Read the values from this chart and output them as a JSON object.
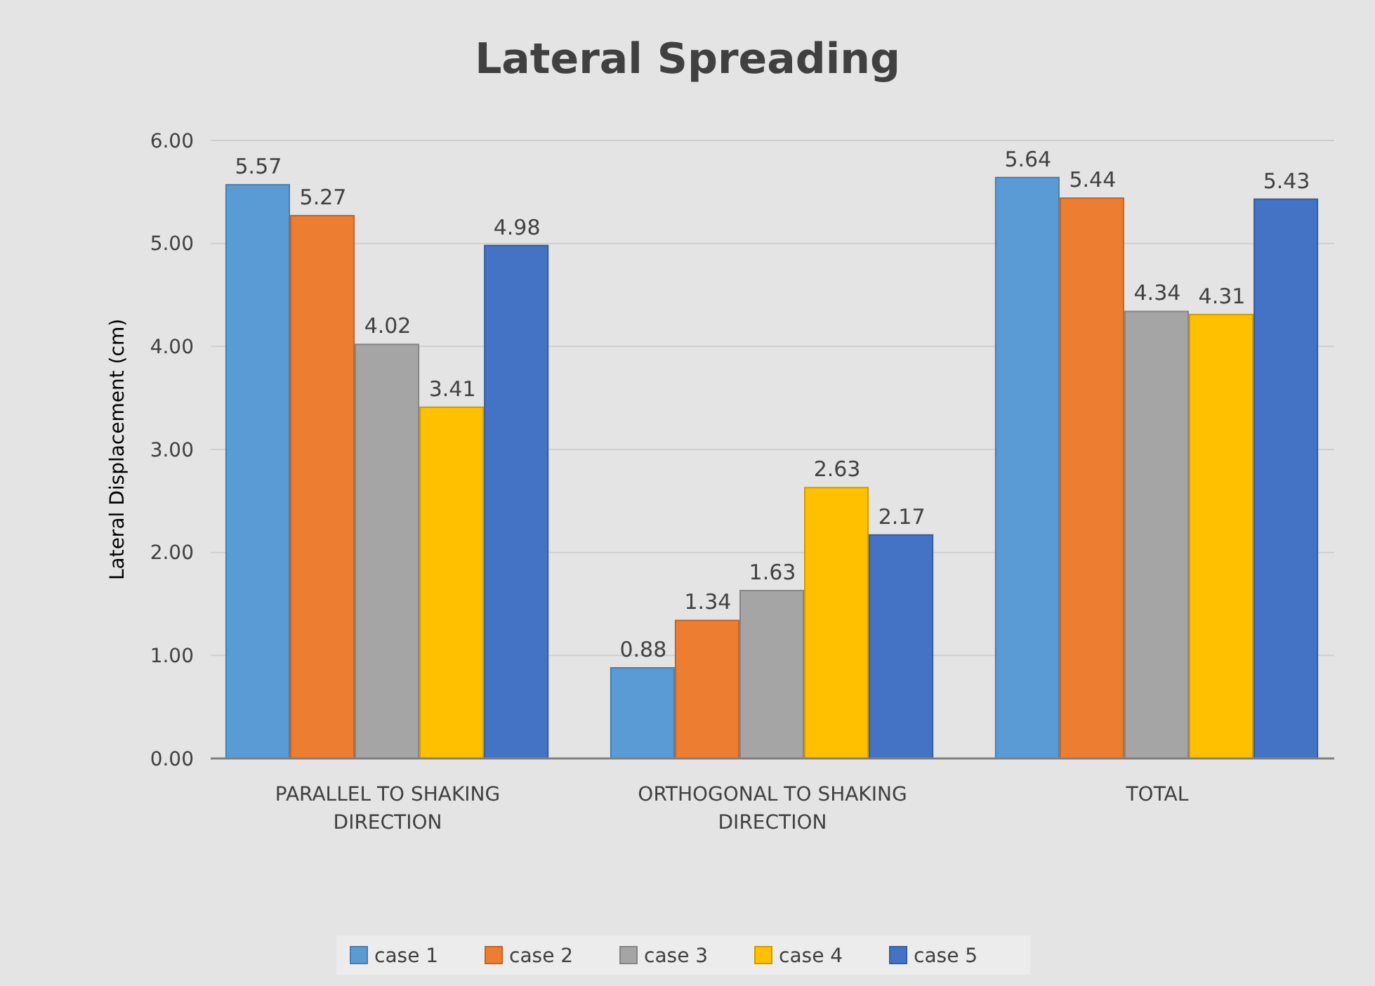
{
  "chart_data": {
    "type": "bar",
    "title": "Lateral Spreading",
    "ylabel": "Lateral Displacement (cm)",
    "categories": [
      "PARALLEL TO SHAKING DIRECTION",
      "ORTHOGONAL TO SHAKING DIRECTION",
      "TOTAL"
    ],
    "series": [
      {
        "name": "case 1",
        "color": "#5b9bd5",
        "values": [
          5.57,
          0.88,
          5.64
        ]
      },
      {
        "name": "case 2",
        "color": "#ed7d31",
        "values": [
          5.27,
          1.34,
          5.44
        ]
      },
      {
        "name": "case 3",
        "color": "#a5a5a5",
        "values": [
          4.02,
          1.63,
          4.34
        ]
      },
      {
        "name": "case 4",
        "color": "#ffc000",
        "values": [
          3.41,
          2.63,
          4.31
        ]
      },
      {
        "name": "case 5",
        "color": "#4472c4",
        "values": [
          4.98,
          2.17,
          5.43
        ]
      }
    ],
    "ylim": [
      0,
      6
    ],
    "yticks": [
      {
        "value": 0,
        "label": "0.00"
      },
      {
        "value": 1,
        "label": "1.00"
      },
      {
        "value": 2,
        "label": "2.00"
      },
      {
        "value": 3,
        "label": "3.00"
      },
      {
        "value": 4,
        "label": "4.00"
      },
      {
        "value": 5,
        "label": "5.00"
      },
      {
        "value": 6,
        "label": "6.00"
      }
    ],
    "grid": "y",
    "legend": "bottom",
    "data_labels": true
  }
}
